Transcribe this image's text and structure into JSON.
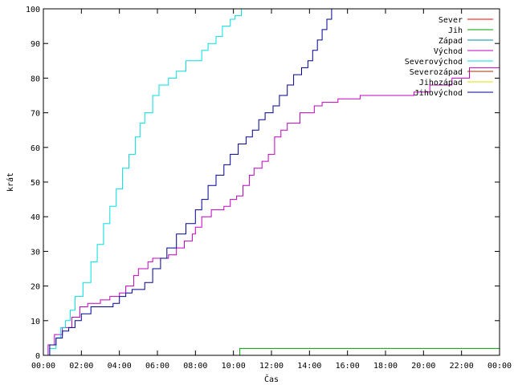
{
  "chart_data": {
    "type": "line",
    "title": "",
    "xlabel": "Čas",
    "ylabel": "krát",
    "xlim": [
      0,
      1440
    ],
    "ylim": [
      0,
      100
    ],
    "x_tick_labels": [
      "00:00",
      "02:00",
      "04:00",
      "06:00",
      "08:00",
      "10:00",
      "12:00",
      "14:00",
      "16:00",
      "18:00",
      "20:00",
      "22:00",
      "00:00"
    ],
    "y_tick_labels": [
      "0",
      "10",
      "20",
      "30",
      "40",
      "50",
      "60",
      "70",
      "80",
      "90",
      "100"
    ],
    "legend_position": "top-right",
    "series": [
      {
        "name": "Sever",
        "color": "#ff0000",
        "x": [],
        "y": []
      },
      {
        "name": "Jih",
        "color": "#00a000",
        "x": [
          0,
          615,
          620,
          1440
        ],
        "y": [
          0,
          0,
          2,
          2
        ]
      },
      {
        "name": "Západ",
        "color": "#0090a0",
        "x": [],
        "y": []
      },
      {
        "name": "Východ",
        "color": "#c000c0",
        "x": [
          0,
          15,
          35,
          60,
          90,
          115,
          140,
          180,
          210,
          240,
          260,
          285,
          300,
          330,
          345,
          370,
          395,
          420,
          445,
          470,
          480,
          500,
          530,
          550,
          570,
          590,
          610,
          630,
          650,
          665,
          690,
          710,
          730,
          750,
          770,
          810,
          855,
          880,
          930,
          1000,
          1090,
          1170,
          1220,
          1290,
          1345,
          1440
        ],
        "y": [
          0,
          3,
          6,
          8,
          11,
          14,
          15,
          16,
          17,
          18,
          20,
          23,
          25,
          27,
          28,
          28,
          29,
          31,
          33,
          35,
          37,
          40,
          42,
          42,
          43,
          45,
          46,
          49,
          52,
          54,
          56,
          58,
          63,
          65,
          67,
          70,
          72,
          73,
          74,
          75,
          75,
          76,
          78,
          80,
          83,
          83
        ]
      },
      {
        "name": "Severovýchod",
        "color": "#00e0e0",
        "x": [
          0,
          20,
          40,
          55,
          70,
          85,
          100,
          125,
          150,
          170,
          190,
          210,
          230,
          250,
          270,
          290,
          305,
          320,
          345,
          365,
          380,
          395,
          420,
          450,
          480,
          500,
          520,
          545,
          565,
          590,
          605,
          625
        ],
        "y": [
          0,
          2,
          5,
          8,
          10,
          13,
          17,
          21,
          27,
          32,
          38,
          43,
          48,
          54,
          58,
          63,
          67,
          70,
          75,
          78,
          78,
          80,
          82,
          85,
          85,
          88,
          90,
          92,
          95,
          97,
          98,
          100
        ]
      },
      {
        "name": "Severozápad",
        "color": "#a03000",
        "x": [],
        "y": []
      },
      {
        "name": "Jihozápad",
        "color": "#e0e000",
        "x": [],
        "y": []
      },
      {
        "name": "Jihovýchod",
        "color": "#000090",
        "x": [
          0,
          20,
          40,
          60,
          80,
          100,
          120,
          150,
          180,
          220,
          240,
          260,
          280,
          300,
          320,
          345,
          370,
          390,
          420,
          450,
          480,
          500,
          520,
          545,
          570,
          590,
          615,
          640,
          660,
          680,
          700,
          725,
          745,
          770,
          790,
          815,
          835,
          850,
          865,
          880,
          895,
          910
        ],
        "y": [
          0,
          3,
          5,
          7,
          8,
          10,
          12,
          14,
          14,
          15,
          17,
          18,
          19,
          19,
          21,
          25,
          28,
          31,
          35,
          38,
          42,
          45,
          49,
          52,
          55,
          58,
          61,
          63,
          65,
          68,
          70,
          72,
          75,
          78,
          81,
          83,
          85,
          88,
          91,
          94,
          97,
          100
        ]
      }
    ]
  }
}
